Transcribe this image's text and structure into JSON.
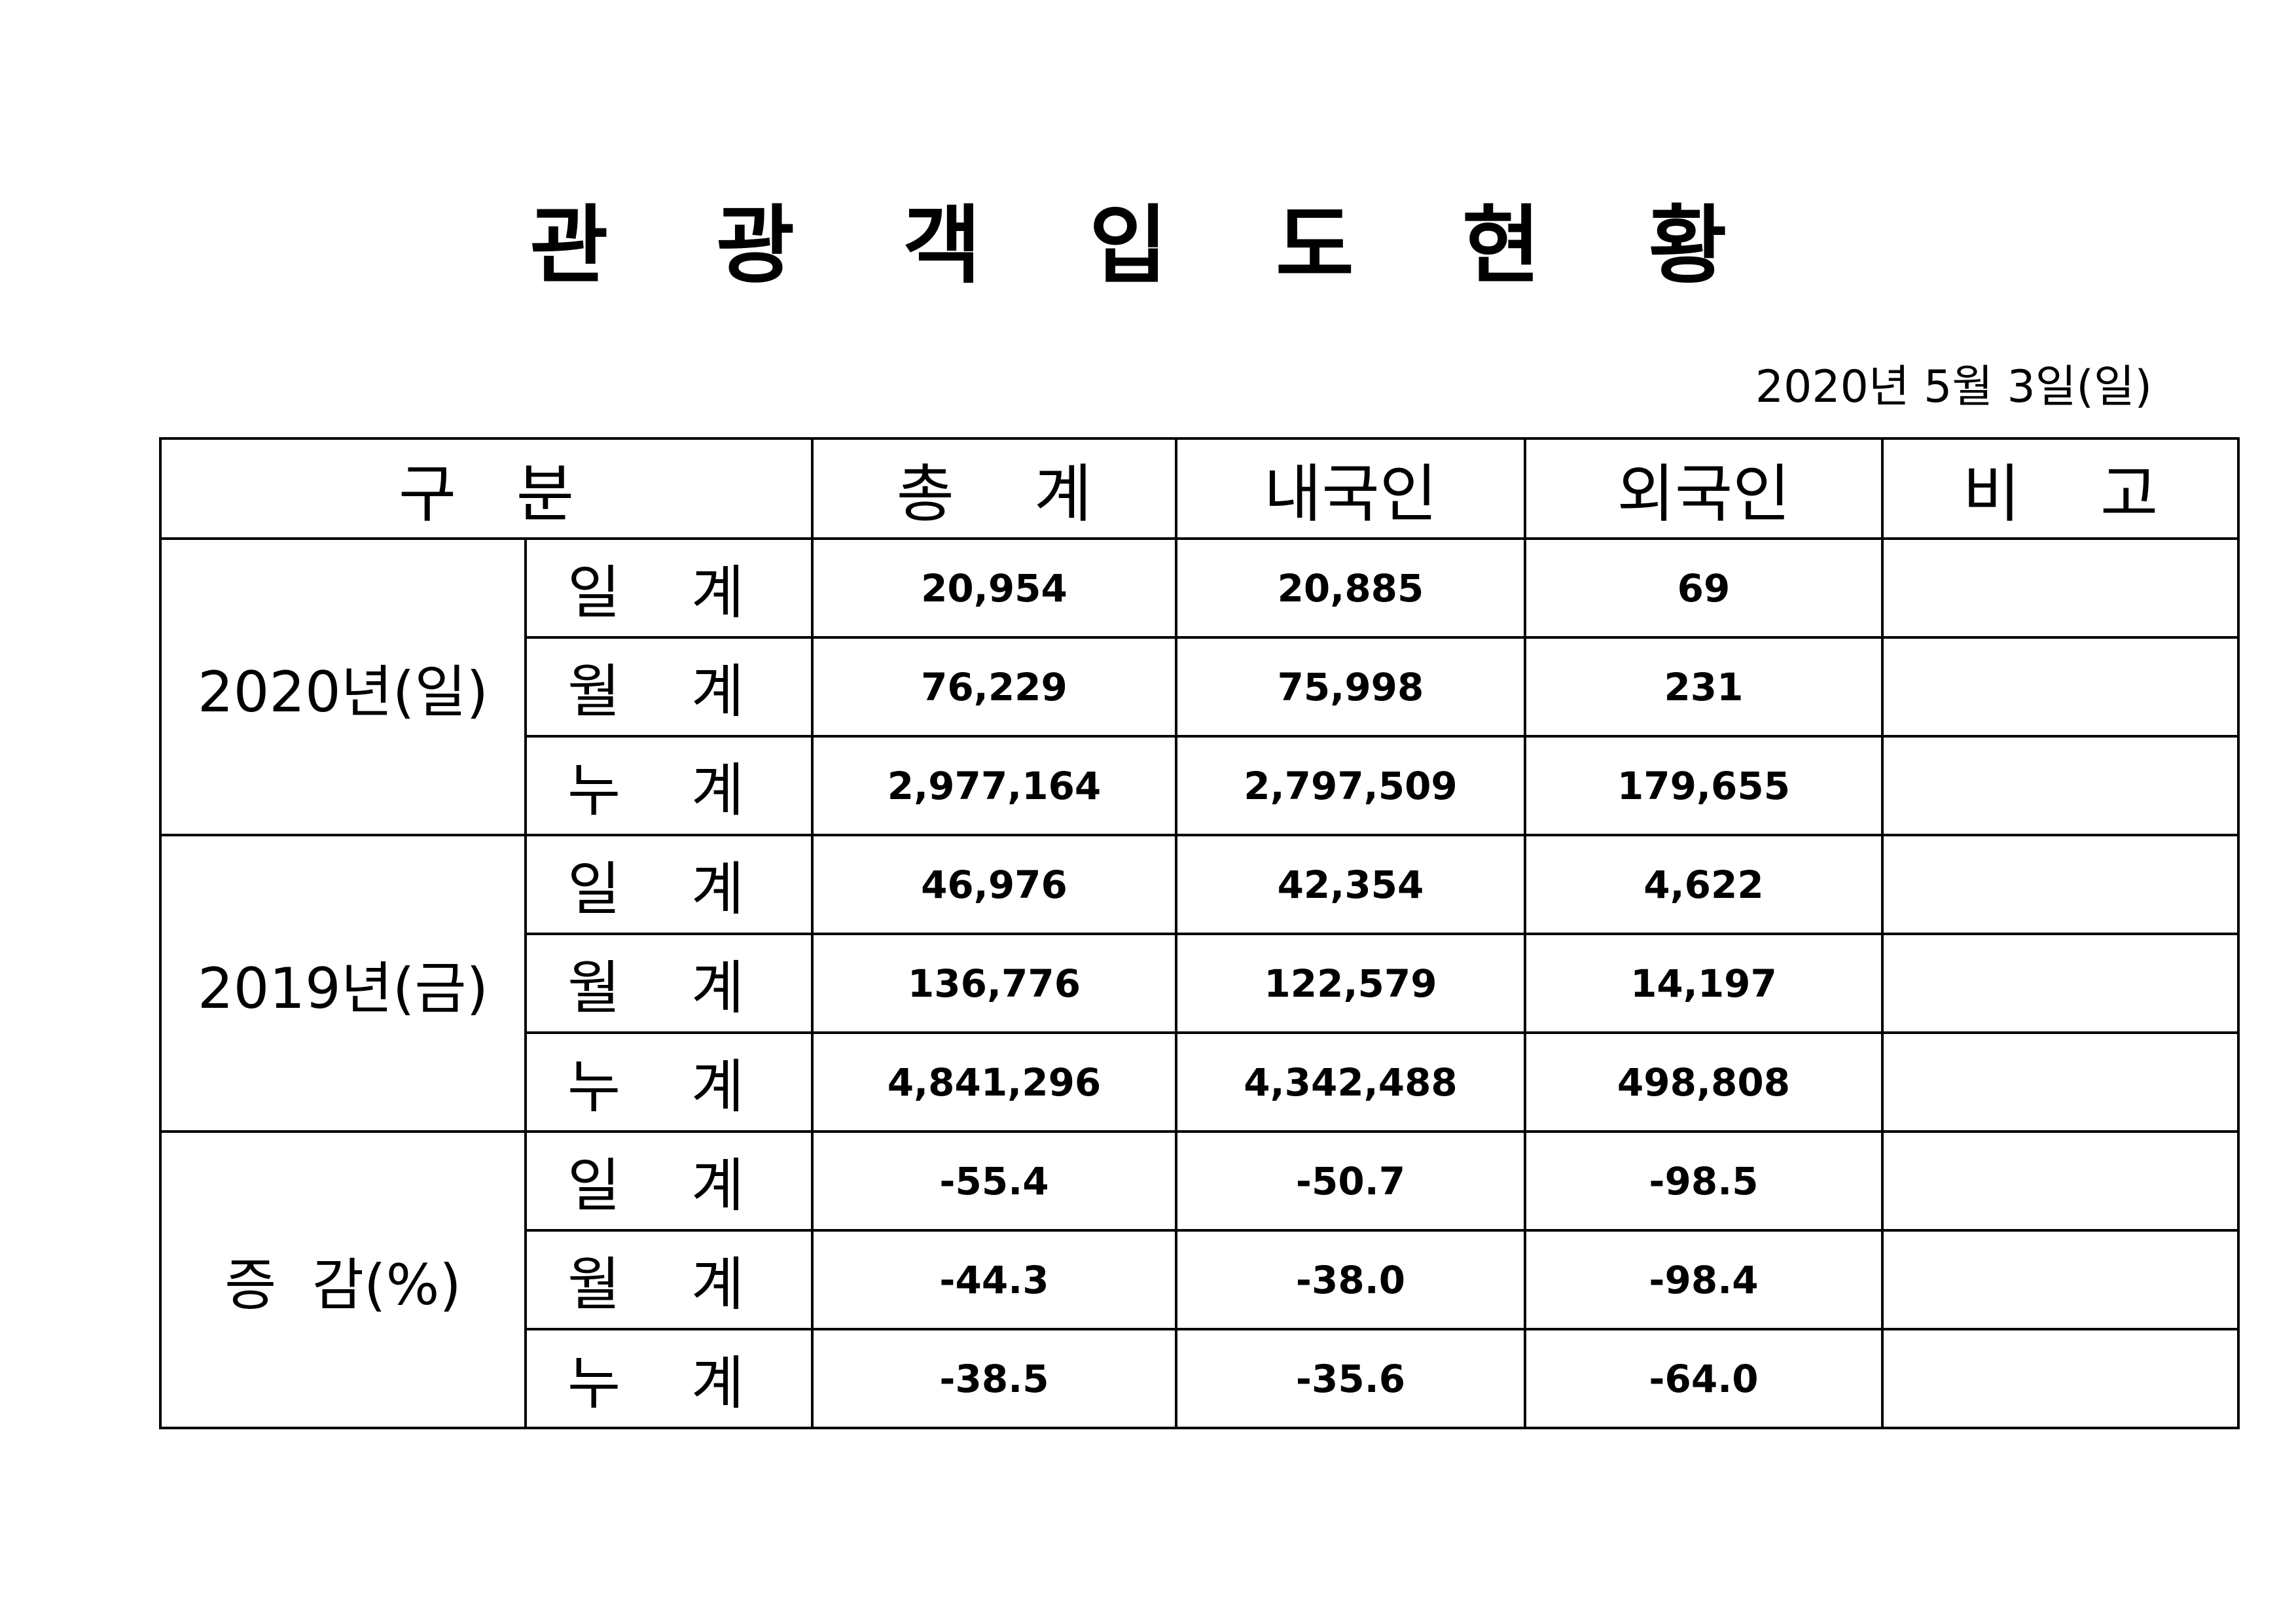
{
  "title": "관 광 객 입 도 현 황",
  "date": "2020년  5월  3일(일)",
  "table": {
    "headers": [
      "구   분",
      "총    계",
      "내국인",
      "외국인",
      "비    고"
    ],
    "groups": [
      {
        "label": "2020년(일)",
        "rows": [
          {
            "sub": "일 계",
            "total": "20,954",
            "domestic": "20,885",
            "foreign": "69",
            "note": ""
          },
          {
            "sub": "월 계",
            "total": "76,229",
            "domestic": "75,998",
            "foreign": "231",
            "note": ""
          },
          {
            "sub": "누 계",
            "total": "2,977,164",
            "domestic": "2,797,509",
            "foreign": "179,655",
            "note": ""
          }
        ]
      },
      {
        "label": "2019년(금)",
        "rows": [
          {
            "sub": "일 계",
            "total": "46,976",
            "domestic": "42,354",
            "foreign": "4,622",
            "note": ""
          },
          {
            "sub": "월 계",
            "total": "136,776",
            "domestic": "122,579",
            "foreign": "14,197",
            "note": ""
          },
          {
            "sub": "누 계",
            "total": "4,841,296",
            "domestic": "4,342,488",
            "foreign": "498,808",
            "note": ""
          }
        ]
      },
      {
        "label": "증  감(%)",
        "rows": [
          {
            "sub": "일 계",
            "total": "-55.4",
            "domestic": "-50.7",
            "foreign": "-98.5",
            "note": ""
          },
          {
            "sub": "월 계",
            "total": "-44.3",
            "domestic": "-38.0",
            "foreign": "-98.4",
            "note": ""
          },
          {
            "sub": "누 계",
            "total": "-38.5",
            "domestic": "-35.6",
            "foreign": "-64.0",
            "note": ""
          }
        ]
      }
    ]
  }
}
